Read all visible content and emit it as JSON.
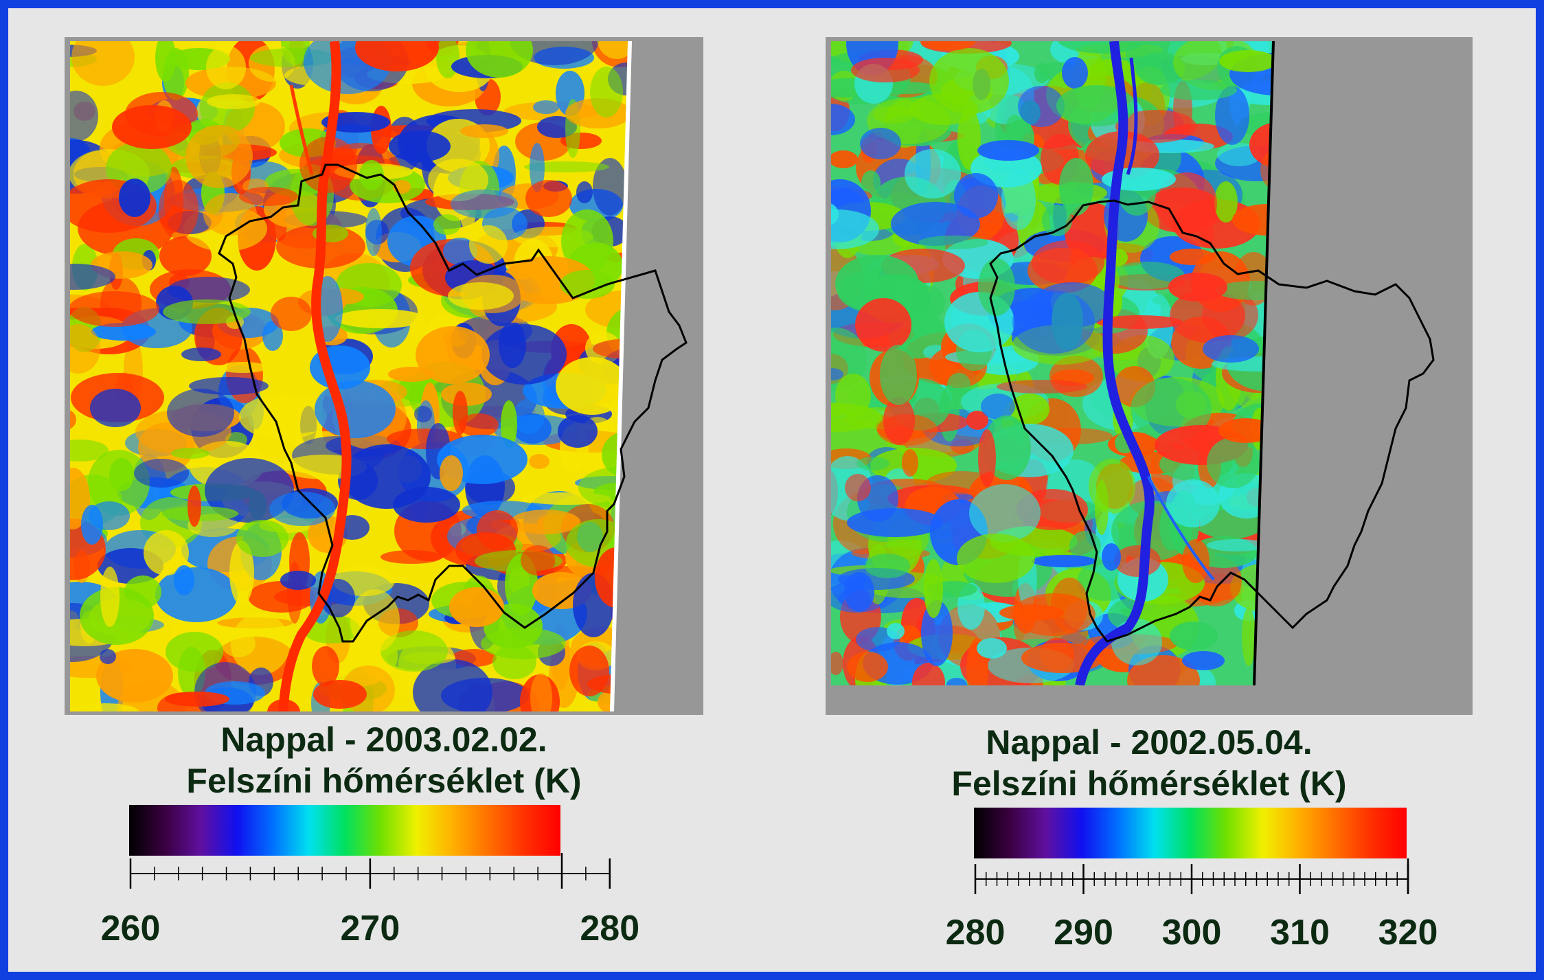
{
  "panels": [
    {
      "title": "Nappal - 2003.02.02.",
      "subtitle": "Felszíni hőmérséklet (K)",
      "scale": {
        "min": 260,
        "max": 280,
        "colorbar_max": 278,
        "major_labels": [
          "260",
          "270",
          "280"
        ],
        "major_values": [
          260,
          270,
          280
        ],
        "minor_step": 1
      },
      "map": {
        "river_color": "#ff2a00",
        "dominant_colors": [
          "#f7e600",
          "#ffa000",
          "#7adf00",
          "#1080ff",
          "#1030d0",
          "#ff3000"
        ]
      }
    },
    {
      "title": "Nappal - 2002.05.04.",
      "subtitle": "Felszíni hőmérséklet (K)",
      "scale": {
        "min": 280,
        "max": 320,
        "colorbar_max": 320,
        "major_labels": [
          "280",
          "290",
          "300",
          "310",
          "320"
        ],
        "major_values": [
          280,
          290,
          300,
          310,
          320
        ],
        "minor_step": 1
      },
      "map": {
        "river_color": "#2020e0",
        "dominant_colors": [
          "#30d060",
          "#30e8e0",
          "#7adf00",
          "#ff5000",
          "#ff3020",
          "#1a60ff"
        ]
      }
    }
  ],
  "colormap": [
    "#000000",
    "#3a0040",
    "#6010a0",
    "#1010f0",
    "#0070ff",
    "#00e0f0",
    "#00e060",
    "#70e000",
    "#f0f000",
    "#ffb000",
    "#ff7000",
    "#ff3000",
    "#ff0000"
  ],
  "colors": {
    "background": "#e6e6e6",
    "border": "#1040e0",
    "nodata": "#979797",
    "text": "#0c2a12"
  }
}
